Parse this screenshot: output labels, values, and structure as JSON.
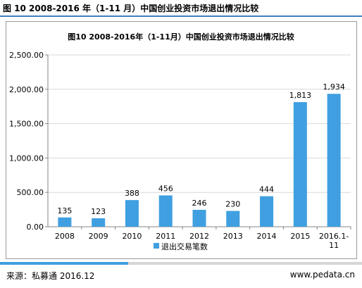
{
  "header": {
    "title": "图 10 2008-2016 年（1-11 月）中国创业投资市场退出情况比较"
  },
  "footer": {
    "source": "来源：私募通 2016.12",
    "website": "www.pedata.cn"
  },
  "colors": {
    "bar": "#3f9fe0",
    "accent_rule": "#3f7fc0",
    "gridline": "#d9d9d9",
    "axis": "#868686"
  },
  "chart_data": {
    "type": "bar",
    "title": "图10 2008-2016年（1-11月）中国创业投资市场退出情况比较",
    "categories": [
      "2008",
      "2009",
      "2010",
      "2011",
      "2012",
      "2013",
      "2014",
      "2015",
      "2016.1-11"
    ],
    "series": [
      {
        "name": "退出交易笔数",
        "values": [
          135,
          123,
          388,
          456,
          246,
          230,
          444,
          1813,
          1934
        ]
      }
    ],
    "data_labels": [
      "135",
      "123",
      "388",
      "456",
      "246",
      "230",
      "444",
      "1,813",
      "1,934"
    ],
    "y_ticks": [
      0,
      500,
      1000,
      1500,
      2000,
      2500
    ],
    "y_tick_labels": [
      "0.00",
      "500.00",
      "1,000.00",
      "1,500.00",
      "2,000.00",
      "2,500.00"
    ],
    "ylim": [
      0,
      2500
    ],
    "grid": true,
    "legend_position": "bottom"
  }
}
